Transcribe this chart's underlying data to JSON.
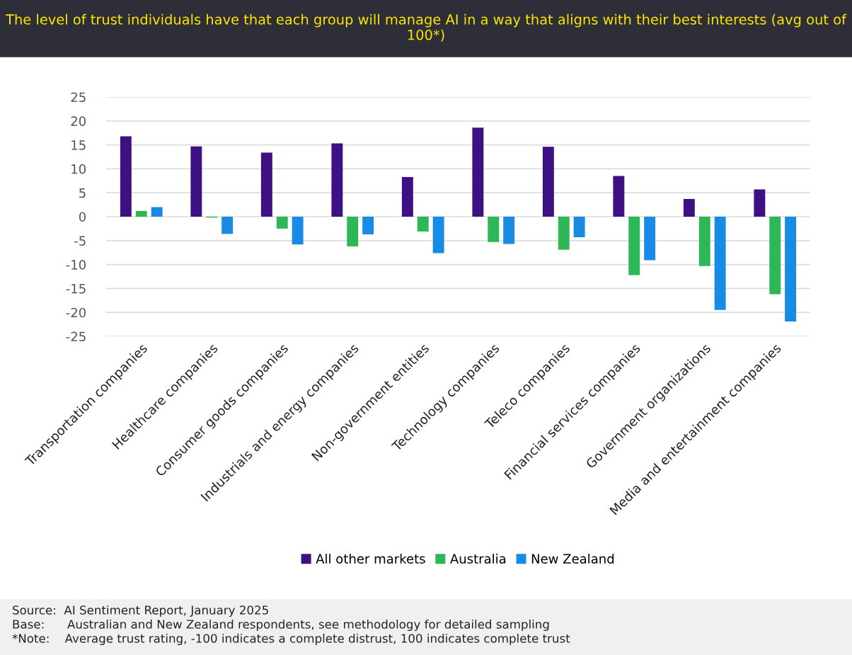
{
  "chart_data": {
    "type": "bar",
    "title": "The level of trust individuals have that each group will manage AI in a way that aligns with their best interests (avg out of 100*)",
    "categories": [
      "Transportation companies",
      "Healthcare companies",
      "Consumer goods companies",
      "Industrials and energy companies",
      "Non-government entities",
      "Technology companies",
      "Teleco companies",
      "Financial services companies",
      "Government organizations",
      "Media and entertainment companies"
    ],
    "series": [
      {
        "name": "All other markets",
        "color": "#3d1183",
        "values": [
          16.8,
          14.7,
          13.4,
          15.3,
          8.3,
          18.6,
          14.6,
          8.5,
          3.7,
          5.7
        ]
      },
      {
        "name": "Australia",
        "color": "#2db757",
        "values": [
          1.2,
          -0.2,
          -2.5,
          -6.2,
          -3.1,
          -5.3,
          -6.9,
          -12.2,
          -10.3,
          -16.2
        ]
      },
      {
        "name": "New Zealand",
        "color": "#188ce5",
        "values": [
          2.0,
          -3.6,
          -5.8,
          -3.7,
          -7.6,
          -5.7,
          -4.3,
          -9.1,
          -19.5,
          -21.9
        ]
      }
    ],
    "ylim": [
      -25,
      25
    ],
    "yticks": [
      -25,
      -20,
      -15,
      -10,
      -5,
      0,
      5,
      10,
      15,
      20,
      25
    ],
    "grid": "y",
    "legend": "bottom",
    "annotations": [
      "Source:  AI Sentiment Report, January 2025",
      "Base:      Australian and New Zealand respondents, see methodology for detailed sampling",
      "*Note:    Average trust rating, -100 indicates a complete distrust, 100 indicates complete trust"
    ]
  }
}
